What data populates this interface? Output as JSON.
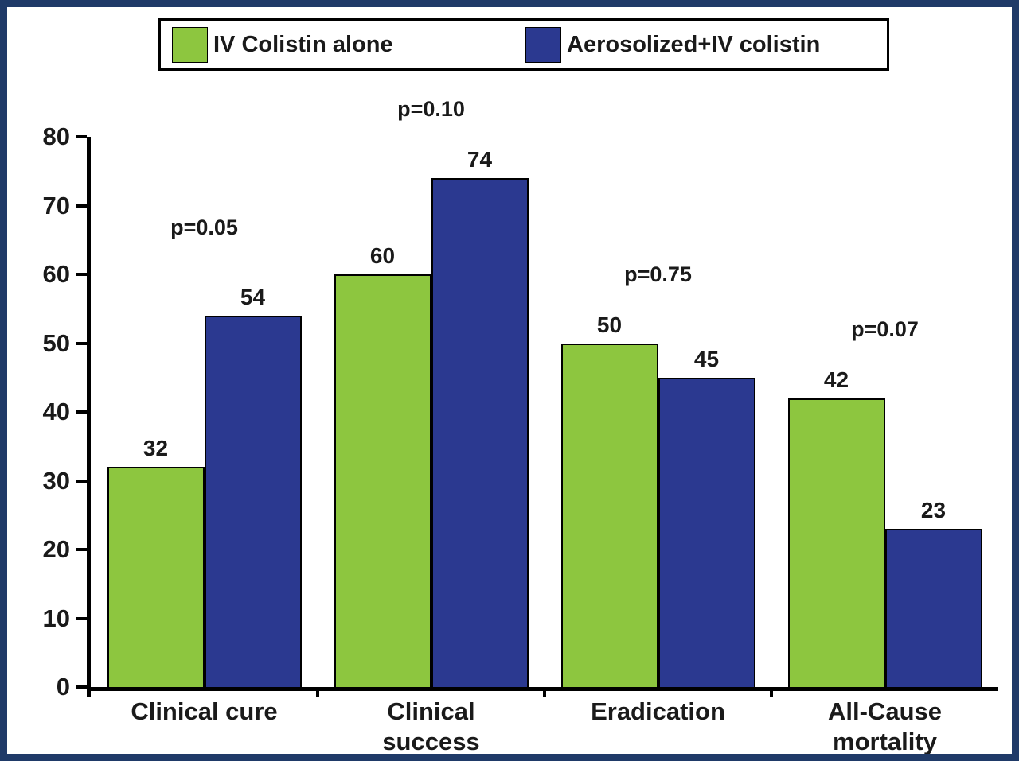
{
  "chart_data": {
    "type": "bar",
    "title": "",
    "xlabel": "",
    "ylabel": "",
    "categories": [
      "Clinical cure",
      "Clinical\nsuccess",
      "Eradication",
      "All-Cause\nmortality"
    ],
    "series": [
      {
        "name": "IV Colistin alone",
        "color": "#8dc63f",
        "values": [
          32,
          60,
          50,
          42
        ]
      },
      {
        "name": "Aerosolized+IV colistin",
        "color": "#2b3990",
        "values": [
          54,
          74,
          45,
          23
        ]
      }
    ],
    "p_values": [
      "p=0.05",
      "p=0.10",
      "p=0.75",
      "p=0.07"
    ],
    "ylim": [
      0,
      80
    ],
    "ytick_step": 10,
    "ytick_labels": [
      "0",
      "10",
      "20",
      "30",
      "40",
      "50",
      "60",
      "70",
      "80"
    ],
    "grid": false,
    "legend_position": "top",
    "colors": {
      "green_series": "#8dc63f",
      "blue_series": "#2b3990",
      "frame_border": "#1f3a68"
    }
  }
}
